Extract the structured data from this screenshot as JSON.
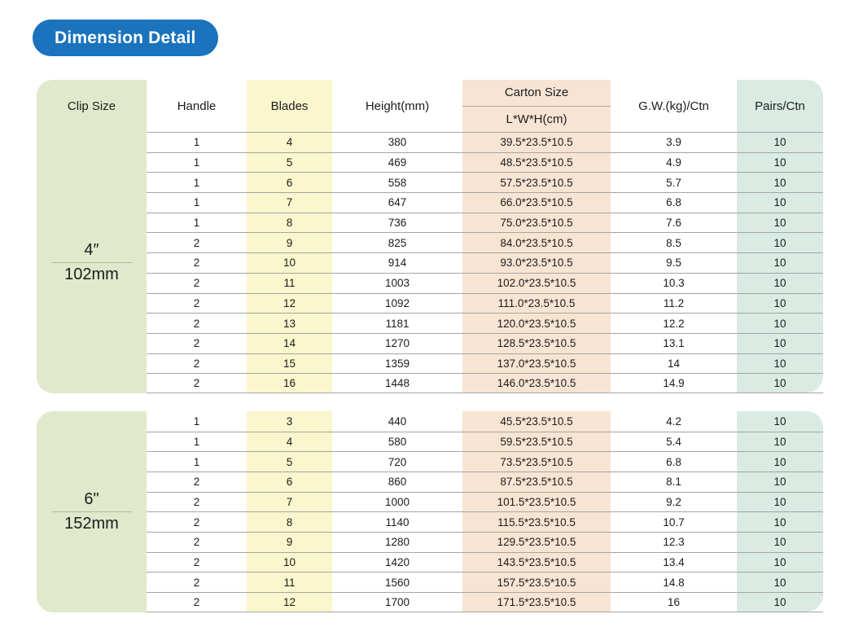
{
  "badge": {
    "label": "Dimension Detail"
  },
  "colors": {
    "badge_bg": "#1a73bc",
    "clip_col_bg": "#e0e9cb",
    "blades_col_bg": "#faf6cd",
    "carton_col_bg": "#f8e4d3",
    "pairs_col_bg": "#d9ebe2",
    "row_line": "#a5a5a5",
    "text": "#1c1c1c"
  },
  "table": {
    "headers": {
      "clip": "Clip Size",
      "handle": "Handle",
      "blades": "Blades",
      "height": "Height(mm)",
      "carton_title": "Carton Size",
      "carton_sub": "L*W*H(cm)",
      "gw": "G.W.(kg)/Ctn",
      "pairs": "Pairs/Ctn"
    },
    "sections": [
      {
        "clip_inch": "4″",
        "clip_mm": "102mm",
        "rows": [
          [
            "1",
            "4",
            "380",
            "39.5*23.5*10.5",
            "3.9",
            "10"
          ],
          [
            "1",
            "5",
            "469",
            "48.5*23.5*10.5",
            "4.9",
            "10"
          ],
          [
            "1",
            "6",
            "558",
            "57.5*23.5*10.5",
            "5.7",
            "10"
          ],
          [
            "1",
            "7",
            "647",
            "66.0*23.5*10.5",
            "6.8",
            "10"
          ],
          [
            "1",
            "8",
            "736",
            "75.0*23.5*10.5",
            "7.6",
            "10"
          ],
          [
            "2",
            "9",
            "825",
            "84.0*23.5*10.5",
            "8.5",
            "10"
          ],
          [
            "2",
            "10",
            "914",
            "93.0*23.5*10.5",
            "9.5",
            "10"
          ],
          [
            "2",
            "11",
            "1003",
            "102.0*23.5*10.5",
            "10.3",
            "10"
          ],
          [
            "2",
            "12",
            "1092",
            "111.0*23.5*10.5",
            "11.2",
            "10"
          ],
          [
            "2",
            "13",
            "1181",
            "120.0*23.5*10.5",
            "12.2",
            "10"
          ],
          [
            "2",
            "14",
            "1270",
            "128.5*23.5*10.5",
            "13.1",
            "10"
          ],
          [
            "2",
            "15",
            "1359",
            "137.0*23.5*10.5",
            "14",
            "10"
          ],
          [
            "2",
            "16",
            "1448",
            "146.0*23.5*10.5",
            "14.9",
            "10"
          ]
        ]
      },
      {
        "clip_inch": "6\"",
        "clip_mm": "152mm",
        "rows": [
          [
            "1",
            "3",
            "440",
            "45.5*23.5*10.5",
            "4.2",
            "10"
          ],
          [
            "1",
            "4",
            "580",
            "59.5*23.5*10.5",
            "5.4",
            "10"
          ],
          [
            "1",
            "5",
            "720",
            "73.5*23.5*10.5",
            "6.8",
            "10"
          ],
          [
            "2",
            "6",
            "860",
            "87.5*23.5*10.5",
            "8.1",
            "10"
          ],
          [
            "2",
            "7",
            "1000",
            "101.5*23.5*10.5",
            "9.2",
            "10"
          ],
          [
            "2",
            "8",
            "1140",
            "115.5*23.5*10.5",
            "10.7",
            "10"
          ],
          [
            "2",
            "9",
            "1280",
            "129.5*23.5*10.5",
            "12.3",
            "10"
          ],
          [
            "2",
            "10",
            "1420",
            "143.5*23.5*10.5",
            "13.4",
            "10"
          ],
          [
            "2",
            "11",
            "1560",
            "157.5*23.5*10.5",
            "14.8",
            "10"
          ],
          [
            "2",
            "12",
            "1700",
            "171.5*23.5*10.5",
            "16",
            "10"
          ]
        ]
      }
    ]
  }
}
